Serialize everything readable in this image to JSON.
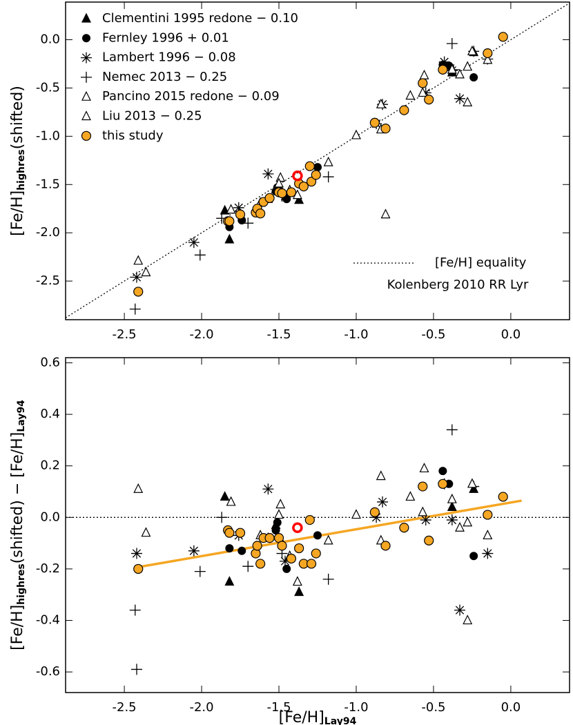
{
  "chart_data": [
    {
      "type": "scatter",
      "xlim": [
        -2.88,
        0.38
      ],
      "ylim": [
        -2.9,
        0.39
      ],
      "xticks": [
        -2.5,
        {
          "value": -2,
          "label": "-2.0"
        },
        -1.5,
        {
          "value": -1,
          "label": "-1.0"
        },
        -0.5,
        {
          "value": 0,
          "label": "0.0"
        }
      ],
      "yticks": [
        {
          "value": 0,
          "label": "0.0"
        },
        -0.5,
        {
          "value": -1,
          "label": "-1.0"
        },
        -1.5,
        {
          "value": -2,
          "label": "-2.0"
        },
        -2.5
      ],
      "ylabel": [
        {
          "text": "[Fe/H]"
        },
        {
          "text": "highres",
          "sub": true
        },
        {
          "text": "(shifted)"
        }
      ],
      "legend": "upper left",
      "series": [
        {
          "name": "Clementini 1995 redone − 0.10",
          "marker": "triangle-filled",
          "color": "#000000",
          "x": [
            -1.85,
            -1.82,
            -1.52,
            -1.48,
            -1.37,
            -0.38,
            -0.24
          ],
          "values": [
            -1.77,
            -2.07,
            -1.55,
            -1.58,
            -1.66,
            -0.34,
            -0.13
          ]
        },
        {
          "name": "Fernley 1996 + 0.01",
          "marker": "circle-filled",
          "color": "#000000",
          "x": [
            -1.82,
            -1.74,
            -1.52,
            -1.51,
            -1.45,
            -1.25,
            -0.44,
            -0.4,
            -0.24
          ],
          "values": [
            -1.94,
            -1.87,
            -1.57,
            -1.53,
            -1.65,
            -1.32,
            -0.26,
            -0.27,
            -0.39
          ]
        },
        {
          "name": "Lambert 1996 − 0.08",
          "marker": "asterisk",
          "color": "#000000",
          "x": [
            -2.42,
            -2.05,
            -1.76,
            -1.57,
            -1.46,
            -0.87,
            -0.83,
            -0.55,
            -0.43,
            -0.38,
            -0.33,
            -0.15
          ],
          "values": [
            -2.46,
            -2.1,
            -1.74,
            -1.39,
            -1.62,
            -0.87,
            -0.67,
            -0.55,
            -0.23,
            -0.32,
            -0.61,
            -0.2
          ]
        },
        {
          "name": "Nemec 2013 − 0.25",
          "marker": "plus",
          "color": "#000000",
          "x": [
            -2.43,
            -2.01,
            -1.87,
            -1.7,
            -1.48,
            -1.18,
            -0.38,
            -0.24,
            -0.37
          ],
          "values": [
            -2.79,
            -2.23,
            -1.85,
            -1.9,
            -1.62,
            -1.42,
            -0.04,
            -0.12,
            -0.31
          ]
        },
        {
          "name": "Pancino 2015 redone − 0.09",
          "marker": "triangle-open",
          "color": "#000000",
          "x": [
            -2.41,
            -2.36,
            -1.81,
            -1.62,
            -1.49,
            -1.5,
            -1.38,
            -1.18,
            -1.0,
            -0.84,
            -0.56,
            -0.25
          ],
          "values": [
            -2.29,
            -2.41,
            -1.76,
            -1.69,
            -1.43,
            -1.49,
            -1.61,
            -1.27,
            -0.99,
            -0.67,
            -0.37,
            -0.12
          ]
        },
        {
          "name": "Liu 2013 − 0.25",
          "marker": "triangle-open",
          "color": "#000000",
          "x": [
            -1.57,
            -1.43,
            -0.84,
            -0.65,
            -0.57,
            -0.38,
            -0.33,
            -0.28,
            -0.15,
            -0.28,
            -0.81
          ],
          "values": [
            -1.65,
            -1.56,
            -0.93,
            -0.58,
            -0.55,
            -0.31,
            -0.36,
            -0.28,
            -0.21,
            -0.65,
            -1.81
          ]
        },
        {
          "name": "this study",
          "marker": "circle",
          "color": "#f5a623",
          "x": [
            -2.41,
            -1.83,
            -1.82,
            -1.75,
            -1.65,
            -1.64,
            -1.62,
            -1.6,
            -1.56,
            -1.5,
            -1.48,
            -1.42,
            -1.37,
            -1.34,
            -1.3,
            -1.29,
            -1.26,
            -0.88,
            -0.81,
            -0.69,
            -0.57,
            -0.53,
            -0.44,
            -0.15,
            -0.05
          ],
          "values": [
            -2.61,
            -1.88,
            -1.88,
            -1.81,
            -1.79,
            -1.75,
            -1.8,
            -1.68,
            -1.64,
            -1.58,
            -1.59,
            -1.58,
            -1.49,
            -1.52,
            -1.31,
            -1.47,
            -1.4,
            -0.86,
            -0.92,
            -0.73,
            -0.45,
            -0.62,
            -0.31,
            -0.14,
            0.03
          ]
        }
      ],
      "reference": {
        "label": "[Fe/H] equality",
        "style": "dotted"
      },
      "highlight": {
        "name": "Kolenberg 2010 RR Lyr",
        "marker": "ring",
        "color": "#ff0000",
        "x": [
          -1.38
        ],
        "values": [
          -1.41
        ]
      }
    },
    {
      "type": "scatter",
      "xlim": [
        -2.88,
        0.38
      ],
      "ylim": [
        -0.68,
        0.62
      ],
      "xticks": [
        -2.5,
        {
          "value": -2,
          "label": "-2.0"
        },
        -1.5,
        {
          "value": -1,
          "label": "-1.0"
        },
        -0.5,
        {
          "value": 0,
          "label": "0.0"
        }
      ],
      "yticks": [
        0.6,
        0.4,
        0.2,
        {
          "value": 0,
          "label": "0.0"
        },
        -0.2,
        -0.4,
        -0.6
      ],
      "ylabel": [
        {
          "text": "[Fe/H]"
        },
        {
          "text": "highres",
          "sub": true
        },
        {
          "text": "(shifted)  −  [Fe/H]"
        },
        {
          "text": "Lay94",
          "sub": true
        }
      ],
      "xlabel": [
        {
          "text": "[Fe/H]"
        },
        {
          "text": "Lay94",
          "sub": true
        }
      ],
      "hline": 0,
      "series": [
        {
          "marker": "triangle-filled",
          "color": "#000000",
          "x": [
            -1.85,
            -1.82,
            -1.52,
            -1.48,
            -1.37,
            -0.38,
            -0.24
          ],
          "values": [
            0.08,
            -0.25,
            -0.03,
            -0.1,
            -0.29,
            0.04,
            0.11
          ]
        },
        {
          "marker": "circle-filled",
          "color": "#000000",
          "x": [
            -1.82,
            -1.74,
            -1.52,
            -1.51,
            -1.45,
            -1.25,
            -0.44,
            -0.4,
            -0.24
          ],
          "values": [
            -0.12,
            -0.13,
            -0.05,
            -0.02,
            -0.2,
            -0.07,
            0.18,
            0.13,
            -0.15
          ]
        },
        {
          "marker": "asterisk",
          "color": "#000000",
          "x": [
            -2.42,
            -2.05,
            -1.76,
            -1.57,
            -1.46,
            -0.87,
            -0.83,
            -0.55,
            -0.43,
            -0.38,
            -0.33,
            -0.15
          ],
          "values": [
            -0.14,
            -0.13,
            -0.07,
            0.11,
            -0.17,
            0.0,
            0.06,
            -0.01,
            0.13,
            -0.01,
            -0.36,
            -0.14
          ]
        },
        {
          "marker": "plus",
          "color": "#000000",
          "x": [
            -2.43,
            -2.42,
            -2.01,
            -1.87,
            -1.7,
            -1.48,
            -1.18,
            -0.38,
            -0.24
          ],
          "values": [
            -0.36,
            -0.59,
            -0.21,
            0.0,
            -0.19,
            -0.14,
            -0.24,
            0.34,
            0.12
          ]
        },
        {
          "marker": "triangle-open",
          "color": "#000000",
          "x": [
            -2.41,
            -2.36,
            -1.81,
            -1.62,
            -1.49,
            -1.5,
            -1.38,
            -1.18,
            -1.0,
            -0.84,
            -0.56,
            -0.25
          ],
          "values": [
            0.11,
            -0.06,
            0.06,
            -0.07,
            0.05,
            0.01,
            -0.25,
            -0.09,
            0.01,
            0.16,
            0.19,
            0.13
          ]
        },
        {
          "marker": "triangle-open",
          "color": "#000000",
          "x": [
            -1.57,
            -1.43,
            -0.84,
            -0.65,
            -0.57,
            -0.38,
            -0.33,
            -0.28,
            -0.15,
            -0.28
          ],
          "values": [
            -0.08,
            -0.15,
            -0.09,
            0.08,
            0.02,
            0.07,
            -0.04,
            -0.02,
            -0.07,
            -0.4
          ]
        },
        {
          "marker": "circle",
          "color": "#f5a623",
          "x": [
            -2.41,
            -1.83,
            -1.82,
            -1.75,
            -1.65,
            -1.64,
            -1.62,
            -1.6,
            -1.56,
            -1.5,
            -1.48,
            -1.42,
            -1.37,
            -1.34,
            -1.3,
            -1.29,
            -1.26,
            -0.88,
            -0.81,
            -0.69,
            -0.57,
            -0.53,
            -0.44,
            -0.15,
            -0.05
          ],
          "values": [
            -0.2,
            -0.05,
            -0.06,
            -0.06,
            -0.14,
            -0.11,
            -0.18,
            -0.08,
            -0.08,
            -0.08,
            -0.11,
            -0.16,
            -0.12,
            -0.18,
            -0.01,
            -0.18,
            -0.14,
            0.02,
            -0.11,
            -0.04,
            0.12,
            -0.09,
            0.13,
            0.01,
            0.08
          ]
        }
      ],
      "fit": {
        "color": "#f5a623",
        "x": [
          -2.43,
          0.07
        ],
        "values": [
          -0.195,
          0.065
        ]
      },
      "highlight": {
        "marker": "ring",
        "color": "#ff0000",
        "x": [
          -1.38
        ],
        "values": [
          -0.04
        ]
      }
    }
  ]
}
